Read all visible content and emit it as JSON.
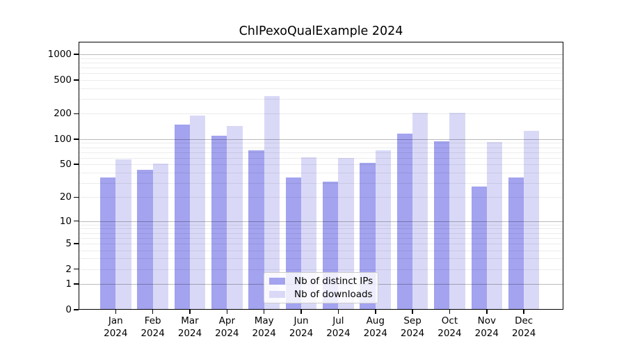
{
  "chart_data": {
    "type": "bar",
    "title": "ChIPexoQualExample 2024",
    "months": [
      "Jan",
      "Feb",
      "Mar",
      "Apr",
      "May",
      "Jun",
      "Jul",
      "Aug",
      "Sep",
      "Oct",
      "Nov",
      "Dec"
    ],
    "year": "2024",
    "series": [
      {
        "name": "Nb of distinct IPs",
        "color": "#a3a3ef",
        "values": [
          35,
          43,
          150,
          110,
          73,
          35,
          31,
          52,
          116,
          95,
          27,
          35
        ]
      },
      {
        "name": "Nb of downloads",
        "color": "#d9d9f7",
        "values": [
          57,
          51,
          190,
          143,
          320,
          61,
          60,
          73,
          205,
          205,
          93,
          125
        ]
      }
    ],
    "y_ticks": [
      0,
      1,
      2,
      5,
      10,
      20,
      50,
      100,
      200,
      500,
      1000
    ],
    "y_minor_gridlines": [
      2,
      3,
      4,
      5,
      6,
      7,
      8,
      9,
      20,
      30,
      40,
      50,
      60,
      70,
      80,
      90,
      200,
      300,
      400,
      500,
      600,
      700,
      800,
      900
    ],
    "y_major_gridlines": [
      1,
      10,
      100,
      1000
    ],
    "y_scale": "log10(1+x)",
    "ylim": [
      0,
      1400
    ],
    "xlabel": "",
    "ylabel": "",
    "grid": true,
    "legend_position": "lower center"
  },
  "colors": {
    "background": "#ffffff",
    "axis": "#000000",
    "legend_border": "#cccccc"
  }
}
